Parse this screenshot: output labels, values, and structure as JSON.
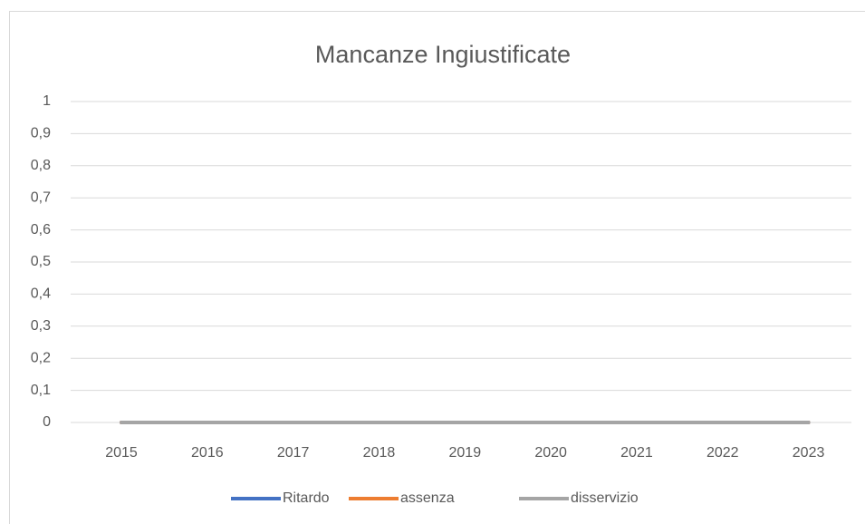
{
  "chart_data": {
    "type": "line",
    "title": "Mancanze Ingiustificate",
    "categories": [
      "2015",
      "2016",
      "2017",
      "2018",
      "2019",
      "2020",
      "2021",
      "2022",
      "2023"
    ],
    "series": [
      {
        "name": "Ritardo",
        "color": "#4472c4",
        "values": [
          0,
          0,
          0,
          0,
          0,
          0,
          0,
          0,
          0
        ]
      },
      {
        "name": "assenza",
        "color": "#ed7d31",
        "values": [
          0,
          0,
          0,
          0,
          0,
          0,
          0,
          0,
          0
        ]
      },
      {
        "name": "disservizio",
        "color": "#a5a5a5",
        "values": [
          0,
          0,
          0,
          0,
          0,
          0,
          0,
          0,
          0
        ]
      }
    ],
    "ylim": [
      0,
      1
    ],
    "yticks": [
      0,
      {
        "value": 0.1,
        "label": "0,1"
      },
      {
        "value": 0.2,
        "label": "0,2"
      },
      {
        "value": 0.3,
        "label": "0,3"
      },
      {
        "value": 0.4,
        "label": "0,4"
      },
      {
        "value": 0.5,
        "label": "0,5"
      },
      {
        "value": 0.6,
        "label": "0,6"
      },
      {
        "value": 0.7,
        "label": "0,7"
      },
      {
        "value": 0.8,
        "label": "0,8"
      },
      {
        "value": 0.9,
        "label": "0,9"
      },
      1
    ],
    "grid": true,
    "legend": "bottom"
  }
}
